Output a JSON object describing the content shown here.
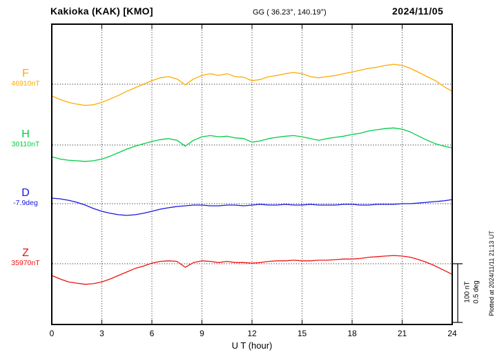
{
  "header": {
    "station": "Kakioka (KAK)  [KMO]",
    "coords": "GG ( 36.23°, 140.19°)",
    "date": "2024/11/05"
  },
  "scalebar": {
    "line1": "100 nT",
    "line2": "0.5 deg"
  },
  "footer_note": "Plotted at 2024/11/11 21:13 UT",
  "chart_data": {
    "type": "line",
    "xlabel": "U T (hour)",
    "x_min": 0,
    "x_max": 24,
    "x_ticks": [
      0,
      3,
      6,
      9,
      12,
      15,
      18,
      21,
      24
    ],
    "x_step_hours": 0.5,
    "grid": "dotted vertical at 3h intervals, dotted horizontal at each component reference level",
    "scale": {
      "nT_per_division": 100,
      "deg_per_division": 0.5
    },
    "series": [
      {
        "name": "F",
        "unit": "nT",
        "reference_label": "46910nT",
        "reference_value": 46910,
        "color": "#FFAA00",
        "offsets": [
          -20,
          -26,
          -31,
          -34,
          -36,
          -35,
          -31,
          -25,
          -19,
          -12,
          -6,
          0,
          6,
          11,
          13,
          9,
          -1,
          9,
          15,
          18,
          15,
          18,
          13,
          12,
          6,
          8,
          13,
          15,
          18,
          20,
          18,
          13,
          11,
          13,
          15,
          18,
          21,
          24,
          27,
          29,
          32,
          34,
          32,
          27,
          20,
          13,
          6,
          -4,
          -12
        ]
      },
      {
        "name": "H",
        "unit": "nT",
        "reference_label": "30110nT",
        "reference_value": 30110,
        "color": "#00CC44",
        "offsets": [
          -20,
          -24,
          -26,
          -27,
          -28,
          -27,
          -24,
          -19,
          -13,
          -7,
          -2,
          2,
          6,
          9,
          11,
          8,
          -2,
          8,
          14,
          16,
          14,
          15,
          12,
          11,
          5,
          7,
          11,
          13,
          15,
          16,
          14,
          11,
          8,
          11,
          13,
          15,
          18,
          20,
          24,
          26,
          28,
          29,
          27,
          22,
          15,
          8,
          2,
          -2,
          -5
        ]
      },
      {
        "name": "D",
        "unit": "deg",
        "reference_label": "-7.9deg",
        "reference_value": -7.9,
        "color": "#1515E0",
        "offsets": [
          0.047,
          0.041,
          0.029,
          0.012,
          -0.012,
          -0.041,
          -0.065,
          -0.082,
          -0.094,
          -0.1,
          -0.094,
          -0.082,
          -0.065,
          -0.047,
          -0.035,
          -0.024,
          -0.018,
          -0.012,
          -0.012,
          -0.018,
          -0.018,
          -0.012,
          -0.012,
          -0.018,
          -0.012,
          -0.006,
          -0.012,
          -0.012,
          -0.006,
          -0.012,
          -0.012,
          -0.006,
          -0.012,
          -0.012,
          -0.012,
          -0.006,
          -0.006,
          -0.012,
          -0.012,
          -0.006,
          -0.006,
          -0.006,
          0.0,
          0.0,
          0.006,
          0.012,
          0.018,
          0.024,
          0.035
        ]
      },
      {
        "name": "Z",
        "unit": "nT",
        "reference_label": "35970nT",
        "reference_value": 35970,
        "color": "#EE1111",
        "offsets": [
          -20,
          -26,
          -31,
          -33,
          -35,
          -34,
          -31,
          -26,
          -20,
          -14,
          -8,
          -4,
          1,
          4,
          5,
          4,
          -6,
          2,
          5,
          4,
          2,
          4,
          2,
          2,
          1,
          2,
          4,
          5,
          5,
          6,
          5,
          5,
          6,
          6,
          7,
          8,
          8,
          9,
          11,
          12,
          13,
          14,
          13,
          11,
          7,
          2,
          -4,
          -11,
          -18
        ]
      }
    ]
  }
}
